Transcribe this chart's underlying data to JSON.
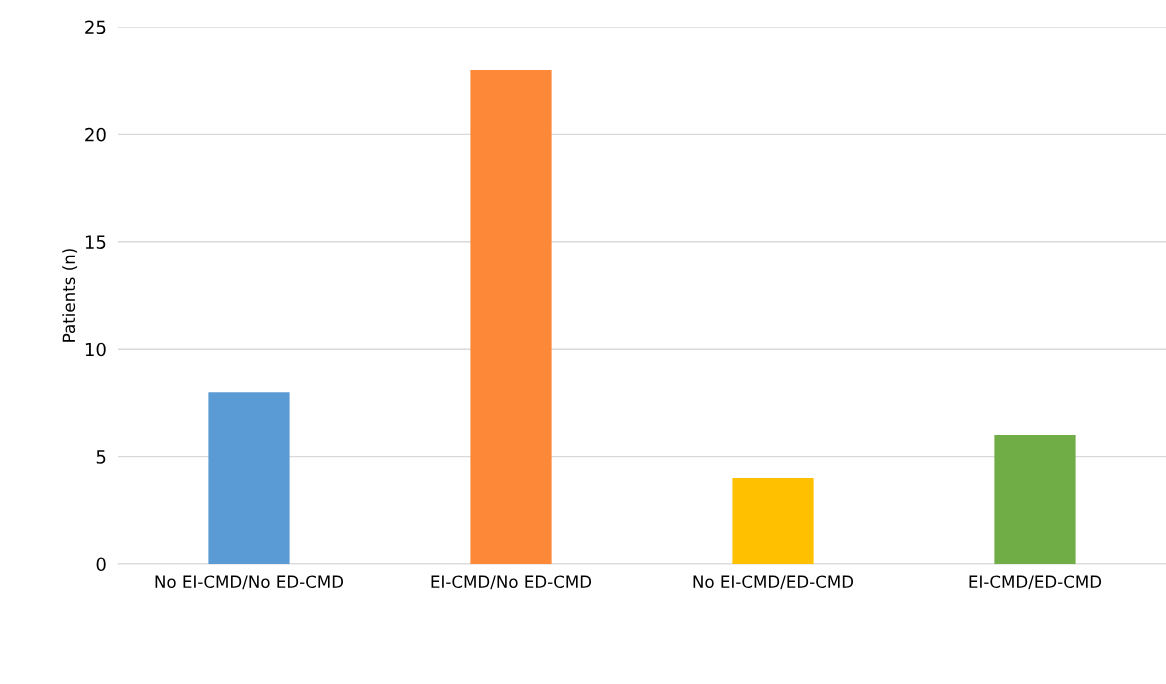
{
  "chart_data": {
    "type": "bar",
    "ylabel": "Patients (n)",
    "categories": [
      "No EI-CMD/No ED-CMD",
      "EI-CMD/No ED-CMD",
      "No EI-CMD/ED-CMD",
      "EI-CMD/ED-CMD"
    ],
    "values": [
      8,
      23,
      4,
      6
    ],
    "colors": [
      "#5b9bd5",
      "#fd8837",
      "#ffc000",
      "#70ad47"
    ],
    "ylim": [
      0,
      25
    ],
    "yticks": [
      0,
      5,
      10,
      15,
      20,
      25
    ],
    "grid": "y"
  }
}
